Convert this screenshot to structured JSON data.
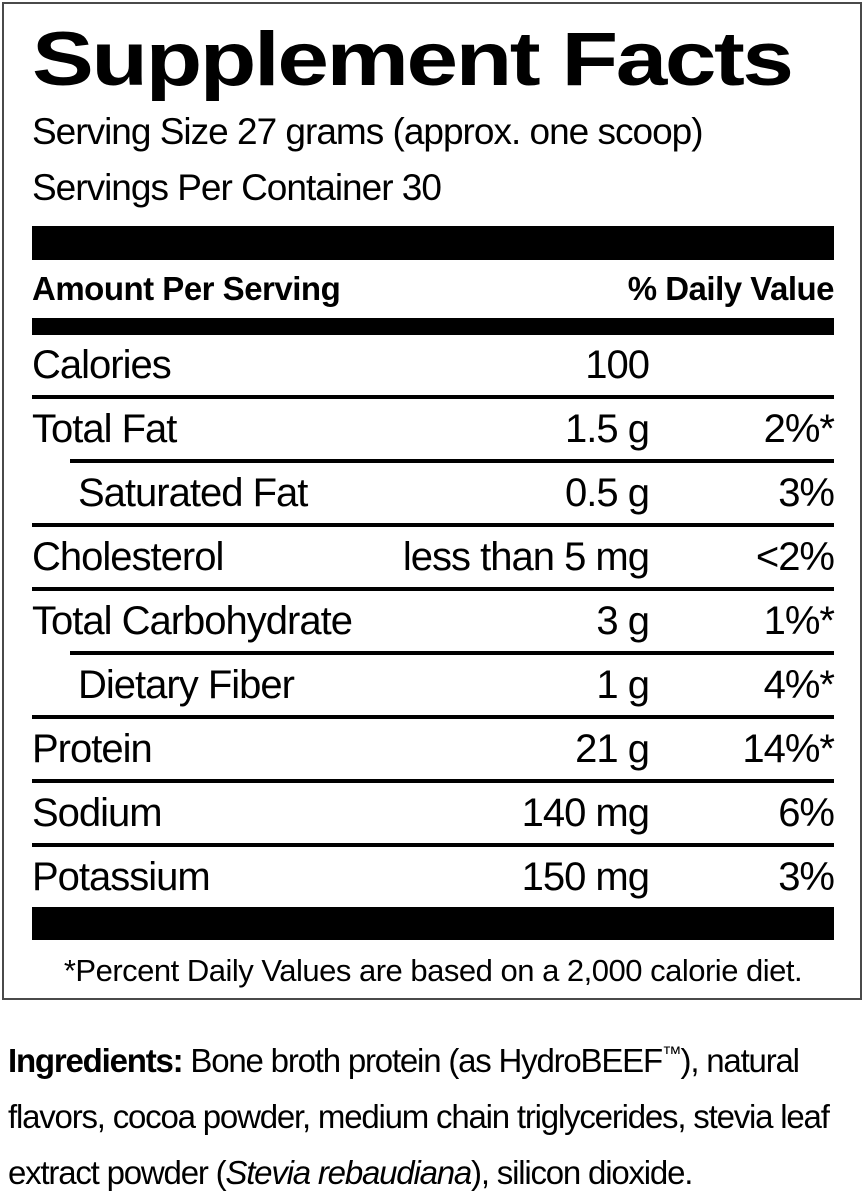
{
  "panel": {
    "title": "Supplement Facts",
    "serving_size": "Serving Size 27 grams (approx. one scoop)",
    "servings_per_container": "Servings Per Container 30",
    "header": {
      "amount": "Amount Per Serving",
      "daily_value": "% Daily Value"
    },
    "rows": [
      {
        "name": "Calories",
        "amount": "100",
        "dv": ""
      },
      {
        "name": "Total Fat",
        "amount": "1.5 g",
        "dv": "2%*"
      },
      {
        "name": "Saturated Fat",
        "amount": "0.5 g",
        "dv": "3%",
        "indent": true
      },
      {
        "name": "Cholesterol",
        "amount": "less than 5 mg",
        "dv": "<2%"
      },
      {
        "name": "Total Carbohydrate",
        "amount": "3 g",
        "dv": "1%*"
      },
      {
        "name": "Dietary Fiber",
        "amount": "1 g",
        "dv": "4%*",
        "indent": true
      },
      {
        "name": "Protein",
        "amount": "21 g",
        "dv": "14%*"
      },
      {
        "name": "Sodium",
        "amount": "140 mg",
        "dv": "6%"
      },
      {
        "name": "Potassium",
        "amount": "150 mg",
        "dv": "3%"
      }
    ],
    "footnote": "*Percent Daily Values are based on a 2,000 calorie diet."
  },
  "ingredients": {
    "label": "Ingredients:",
    "part1": " Bone broth protein (as HydroBEEF",
    "trademark": "™",
    "part2": "), natural flavors, cocoa powder, medium chain triglycerides, stevia leaf extract powder (",
    "latin_name": "Stevia rebaudiana",
    "part3": "), silicon dioxide."
  },
  "colors": {
    "text": "#000000",
    "background": "#ffffff",
    "bar": "#000000",
    "border": "#4a4a4a"
  }
}
